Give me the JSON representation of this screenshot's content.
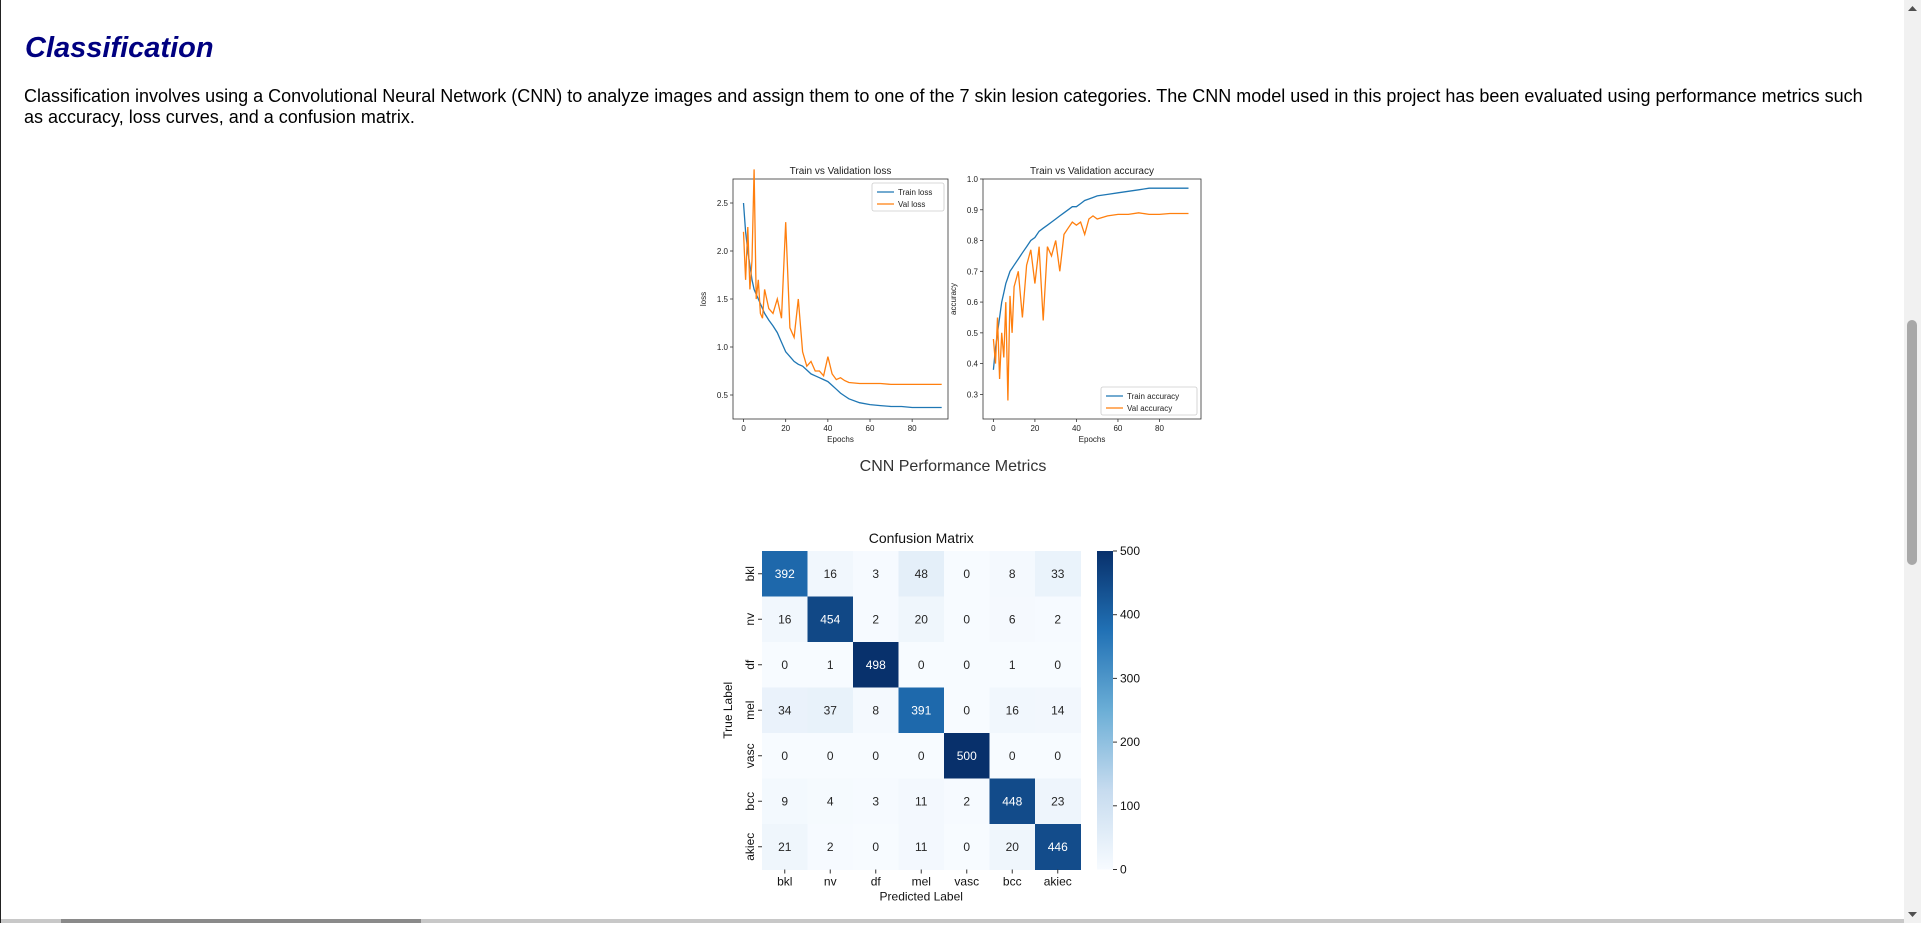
{
  "section": {
    "title": "Classification",
    "intro": "Classification involves using a Convolutional Neural Network (CNN) to analyze images and assign them to one of the 7 skin lesion categories. The CNN model used in this project has been evaluated using performance metrics such as accuracy, loss curves, and a confusion matrix."
  },
  "figures": {
    "metrics_caption": "CNN Performance Metrics"
  },
  "colors": {
    "heading": "#000080",
    "train": "#1f77b4",
    "val": "#ff7f0e"
  },
  "chart_data": [
    {
      "type": "line",
      "title": "Train vs Validation loss",
      "xlabel": "Epochs",
      "ylabel": "loss",
      "xlim": [
        -5,
        97
      ],
      "ylim": [
        0.25,
        2.75
      ],
      "xticks": [
        0,
        20,
        40,
        60,
        80
      ],
      "yticks": [
        0.5,
        1.0,
        1.5,
        2.0,
        2.5
      ],
      "yticklabels": [
        "0.5",
        "1.0",
        "1.5",
        "2.0",
        "2.5"
      ],
      "legend": "top-right",
      "x": [
        0,
        1,
        2,
        3,
        4,
        5,
        6,
        7,
        8,
        9,
        10,
        12,
        14,
        16,
        18,
        20,
        22,
        24,
        26,
        28,
        30,
        32,
        34,
        36,
        38,
        40,
        42,
        44,
        46,
        48,
        50,
        55,
        60,
        65,
        70,
        75,
        80,
        85,
        90,
        94
      ],
      "series": [
        {
          "name": "Train loss",
          "values": [
            2.5,
            2.2,
            2.0,
            1.85,
            1.7,
            1.6,
            1.55,
            1.5,
            1.45,
            1.4,
            1.35,
            1.28,
            1.22,
            1.15,
            1.05,
            0.95,
            0.9,
            0.85,
            0.82,
            0.8,
            0.76,
            0.72,
            0.7,
            0.68,
            0.66,
            0.64,
            0.6,
            0.56,
            0.52,
            0.49,
            0.46,
            0.42,
            0.4,
            0.39,
            0.38,
            0.38,
            0.37,
            0.37,
            0.37,
            0.37
          ]
        },
        {
          "name": "Val loss",
          "values": [
            2.2,
            1.7,
            2.25,
            1.6,
            1.9,
            2.85,
            1.5,
            1.7,
            1.35,
            1.3,
            1.6,
            1.4,
            1.35,
            1.5,
            1.3,
            2.3,
            1.2,
            1.1,
            1.5,
            0.95,
            0.8,
            0.85,
            0.75,
            0.75,
            0.7,
            0.9,
            0.72,
            0.66,
            0.68,
            0.65,
            0.63,
            0.62,
            0.62,
            0.62,
            0.61,
            0.61,
            0.61,
            0.61,
            0.61,
            0.61
          ]
        }
      ]
    },
    {
      "type": "line",
      "title": "Train vs Validation accuracy",
      "xlabel": "Epochs",
      "ylabel": "accuracy",
      "xlim": [
        -5,
        100
      ],
      "ylim": [
        0.22,
        1.0
      ],
      "xticks": [
        0,
        20,
        40,
        60,
        80
      ],
      "yticks": [
        0.3,
        0.4,
        0.5,
        0.6,
        0.7,
        0.8,
        0.9,
        1.0
      ],
      "yticklabels": [
        "0.3",
        "0.4",
        "0.5",
        "0.6",
        "0.7",
        "0.8",
        "0.9",
        "1.0"
      ],
      "legend": "bottom-right",
      "x": [
        0,
        1,
        2,
        3,
        4,
        5,
        6,
        7,
        8,
        9,
        10,
        12,
        14,
        16,
        18,
        20,
        22,
        24,
        26,
        28,
        30,
        32,
        34,
        36,
        38,
        40,
        42,
        44,
        46,
        48,
        50,
        55,
        60,
        65,
        70,
        75,
        80,
        85,
        90,
        94
      ],
      "series": [
        {
          "name": "Train accuracy",
          "values": [
            0.38,
            0.45,
            0.5,
            0.55,
            0.6,
            0.63,
            0.66,
            0.68,
            0.7,
            0.71,
            0.72,
            0.74,
            0.76,
            0.78,
            0.8,
            0.81,
            0.83,
            0.84,
            0.85,
            0.86,
            0.87,
            0.88,
            0.89,
            0.9,
            0.91,
            0.91,
            0.92,
            0.93,
            0.935,
            0.94,
            0.945,
            0.95,
            0.955,
            0.96,
            0.965,
            0.97,
            0.97,
            0.97,
            0.97,
            0.97
          ]
        },
        {
          "name": "Val accuracy",
          "values": [
            0.48,
            0.4,
            0.55,
            0.35,
            0.5,
            0.42,
            0.6,
            0.28,
            0.62,
            0.5,
            0.65,
            0.7,
            0.55,
            0.72,
            0.77,
            0.66,
            0.78,
            0.54,
            0.78,
            0.75,
            0.8,
            0.7,
            0.82,
            0.84,
            0.86,
            0.85,
            0.86,
            0.82,
            0.87,
            0.88,
            0.87,
            0.88,
            0.885,
            0.885,
            0.89,
            0.885,
            0.885,
            0.888,
            0.888,
            0.888
          ]
        }
      ]
    },
    {
      "type": "heatmap",
      "title": "Confusion Matrix",
      "xlabel": "Predicted Label",
      "ylabel": "True Label",
      "categories": [
        "bkl",
        "nv",
        "df",
        "mel",
        "vasc",
        "bcc",
        "akiec"
      ],
      "values": [
        [
          392,
          16,
          3,
          48,
          0,
          8,
          33
        ],
        [
          16,
          454,
          2,
          20,
          0,
          6,
          2
        ],
        [
          0,
          1,
          498,
          0,
          0,
          1,
          0
        ],
        [
          34,
          37,
          8,
          391,
          0,
          16,
          14
        ],
        [
          0,
          0,
          0,
          0,
          500,
          0,
          0
        ],
        [
          9,
          4,
          3,
          11,
          2,
          448,
          23
        ],
        [
          21,
          2,
          0,
          11,
          0,
          20,
          446
        ]
      ],
      "colorbar": {
        "min": 0,
        "max": 500,
        "ticks": [
          0,
          100,
          200,
          300,
          400,
          500
        ]
      }
    }
  ]
}
